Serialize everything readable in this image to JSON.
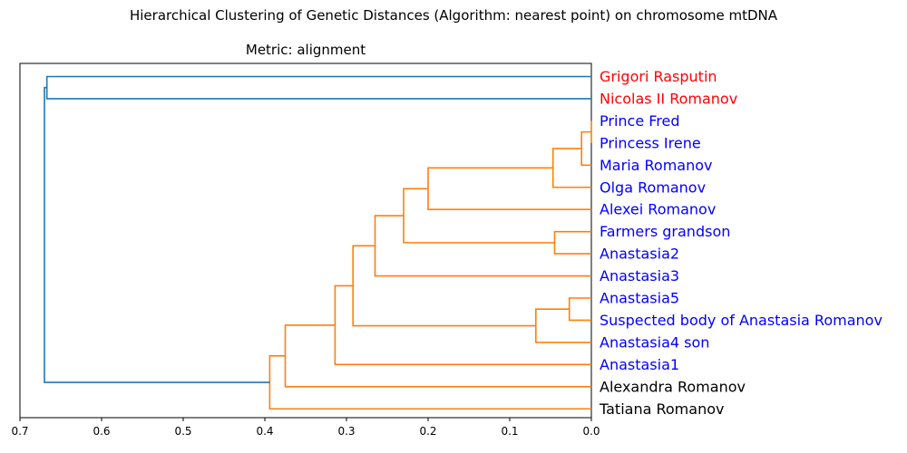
{
  "chart_data": {
    "type": "dendrogram",
    "title": "Hierarchical Clustering of Genetic Distances (Algorithm: nearest point) on chromosome mtDNA",
    "subtitle": "Metric: alignment",
    "orientation": "left",
    "xlim": [
      0.7,
      0.0
    ],
    "xticks": [
      "0.7",
      "0.6",
      "0.5",
      "0.4",
      "0.3",
      "0.2",
      "0.1",
      "0.0"
    ],
    "xtick_values": [
      0.7,
      0.6,
      0.5,
      0.4,
      0.3,
      0.2,
      0.1,
      0.0
    ],
    "leaves": [
      {
        "label": "Grigori Rasputin",
        "color": "#ff0000"
      },
      {
        "label": "Nicolas II Romanov",
        "color": "#ff0000"
      },
      {
        "label": "Prince Fred",
        "color": "#0000ff"
      },
      {
        "label": "Princess Irene",
        "color": "#0000ff"
      },
      {
        "label": "Maria Romanov",
        "color": "#0000ff"
      },
      {
        "label": "Olga Romanov",
        "color": "#0000ff"
      },
      {
        "label": "Alexei Romanov",
        "color": "#0000ff"
      },
      {
        "label": "Farmers grandson",
        "color": "#0000ff"
      },
      {
        "label": "Anastasia2",
        "color": "#0000ff"
      },
      {
        "label": "Anastasia3",
        "color": "#0000ff"
      },
      {
        "label": "Anastasia5",
        "color": "#0000ff"
      },
      {
        "label": "Suspected body of Anastasia Romanov",
        "color": "#0000ff"
      },
      {
        "label": "Anastasia4 son",
        "color": "#0000ff"
      },
      {
        "label": "Anastasia1",
        "color": "#0000ff"
      },
      {
        "label": "Alexandra Romanov",
        "color": "#000000"
      },
      {
        "label": "Tatiana Romanov",
        "color": "#000000"
      }
    ],
    "links": [
      {
        "dist": 0.0,
        "a": "L2",
        "b": "L3",
        "color": "#ff7f0e"
      },
      {
        "dist": 0.012,
        "a": "N0",
        "b": "L4",
        "color": "#ff7f0e"
      },
      {
        "dist": 0.047,
        "a": "N1",
        "b": "L5",
        "color": "#ff7f0e"
      },
      {
        "dist": 0.2,
        "a": "N2",
        "b": "L6",
        "color": "#ff7f0e"
      },
      {
        "dist": 0.045,
        "a": "L7",
        "b": "L8",
        "color": "#ff7f0e"
      },
      {
        "dist": 0.23,
        "a": "N3",
        "b": "N4",
        "color": "#ff7f0e"
      },
      {
        "dist": 0.265,
        "a": "N5",
        "b": "L9",
        "color": "#ff7f0e"
      },
      {
        "dist": 0.027,
        "a": "L10",
        "b": "L11",
        "color": "#ff7f0e"
      },
      {
        "dist": 0.068,
        "a": "N7",
        "b": "L12",
        "color": "#ff7f0e"
      },
      {
        "dist": 0.292,
        "a": "N6",
        "b": "N8",
        "color": "#ff7f0e"
      },
      {
        "dist": 0.314,
        "a": "N9",
        "b": "L13",
        "color": "#ff7f0e"
      },
      {
        "dist": 0.375,
        "a": "N10",
        "b": "L14",
        "color": "#ff7f0e"
      },
      {
        "dist": 0.394,
        "a": "N11",
        "b": "L15",
        "color": "#ff7f0e"
      },
      {
        "dist": 0.667,
        "a": "L0",
        "b": "L1",
        "color": "#1f77b4"
      },
      {
        "dist": 0.67,
        "a": "N13",
        "b": "N12",
        "color": "#1f77b4"
      }
    ],
    "grid": false,
    "legend": "none"
  }
}
